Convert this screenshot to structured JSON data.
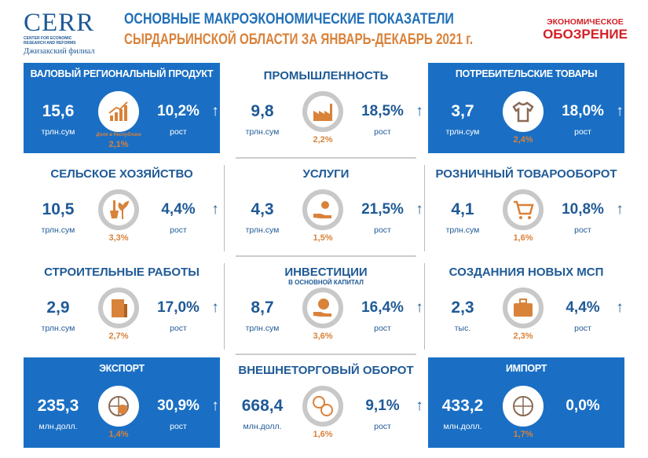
{
  "header": {
    "logo_big": "CERR",
    "logo_small": "CENTER FOR ECONOMIC RESEARCH AND REFORMS",
    "logo_branch": "Джизакский филиал",
    "title_line1": "ОСНОВНЫЕ МАКРОЭКОНОМИЧЕСКИЕ ПОКАЗАТЕЛИ",
    "title_line2": "СЫРДАРЬИНСКОЙ ОБЛАСТИ ЗА ЯНВАРЬ-ДЕКАБРЬ 2021 г.",
    "brand_line1": "ЭКОНОМИЧЕСКОЕ",
    "brand_line2": "ОБОЗРЕНИЕ"
  },
  "colors": {
    "blue": "#1a6fc4",
    "dark_blue": "#1f5a96",
    "orange": "#d9823a",
    "brand_red": "#d32027"
  },
  "cards": [
    {
      "title": "ВАЛОВЫЙ РЕГИОНАЛЬНЫЙ ПРОДУКТ",
      "value": "15,6",
      "unit": "трлн.сум",
      "share_label": "Доля в Республике",
      "share": "2,1%",
      "growth": "10,2%",
      "growth_label": "рост",
      "arrow": "↑",
      "icon": "growth-chart-icon"
    },
    {
      "title": "ПРОМЫШЛЕННОСТЬ",
      "value": "9,8",
      "unit": "трлн.сум",
      "share": "2,2%",
      "growth": "18,5%",
      "growth_label": "рост",
      "arrow": "↑",
      "icon": "factory-icon"
    },
    {
      "title": "ПОТРЕБИТЕЛЬСКИЕ ТОВАРЫ",
      "value": "3,7",
      "unit": "трлн.сум",
      "share": "2,4%",
      "growth": "18,0%",
      "growth_label": "рост",
      "arrow": "↑",
      "icon": "tshirt-icon"
    },
    {
      "title": "СЕЛЬСКОЕ ХОЗЯЙСТВО",
      "value": "10,5",
      "unit": "трлн.сум",
      "share": "3,3%",
      "growth": "4,4%",
      "growth_label": "рост",
      "arrow": "↑",
      "icon": "shovel-plant-icon"
    },
    {
      "title": "УСЛУГИ",
      "value": "4,3",
      "unit": "трлн.сум",
      "share": "1,5%",
      "growth": "21,5%",
      "growth_label": "рост",
      "arrow": "↑",
      "icon": "service-hand-icon"
    },
    {
      "title": "РОЗНИЧНЫЙ ТОВАРООБОРОТ",
      "value": "4,1",
      "unit": "трлн.сум",
      "share": "1,6%",
      "growth": "10,8%",
      "growth_label": "рост",
      "arrow": "↑",
      "icon": "shopping-cart-icon"
    },
    {
      "title": "СТРОИТЕЛЬНЫЕ РАБОТЫ",
      "value": "2,9",
      "unit": "трлн.сум",
      "share": "2,7%",
      "growth": "17,0%",
      "growth_label": "рост",
      "arrow": "↑",
      "icon": "building-icon"
    },
    {
      "title": "ИНВЕСТИЦИИ",
      "subtitle": "В ОСНОВНОЙ КАПИТАЛ",
      "value": "8,7",
      "unit": "трлн.сум",
      "share": "3,6%",
      "growth": "16,4%",
      "growth_label": "рост",
      "arrow": "↑",
      "icon": "money-bag-hand-icon"
    },
    {
      "title": "СОЗДАННИЯ НОВЫХ МСП",
      "value": "2,3",
      "unit": "тыс.",
      "share": "2,3%",
      "growth": "4,4%",
      "growth_label": "рост",
      "arrow": "↑",
      "icon": "briefcase-icon"
    },
    {
      "title": "ЭКСПОРТ",
      "value": "235,3",
      "unit": "млн.долл.",
      "share": "1,4%",
      "growth": "30,9%",
      "growth_label": "рост",
      "arrow": "↑",
      "icon": "globe-export-icon"
    },
    {
      "title": "ВНЕШНЕТОРГОВЫЙ ОБОРОТ",
      "value": "668,4",
      "unit": "млн.долл.",
      "share": "1,6%",
      "growth": "9,1%",
      "growth_label": "рост",
      "arrow": "↑",
      "icon": "currency-exchange-icon"
    },
    {
      "title": "ИМПОРТ",
      "value": "433,2",
      "unit": "млн.долл.",
      "share": "1,7%",
      "growth": "0,0%",
      "icon": "globe-import-icon"
    }
  ]
}
